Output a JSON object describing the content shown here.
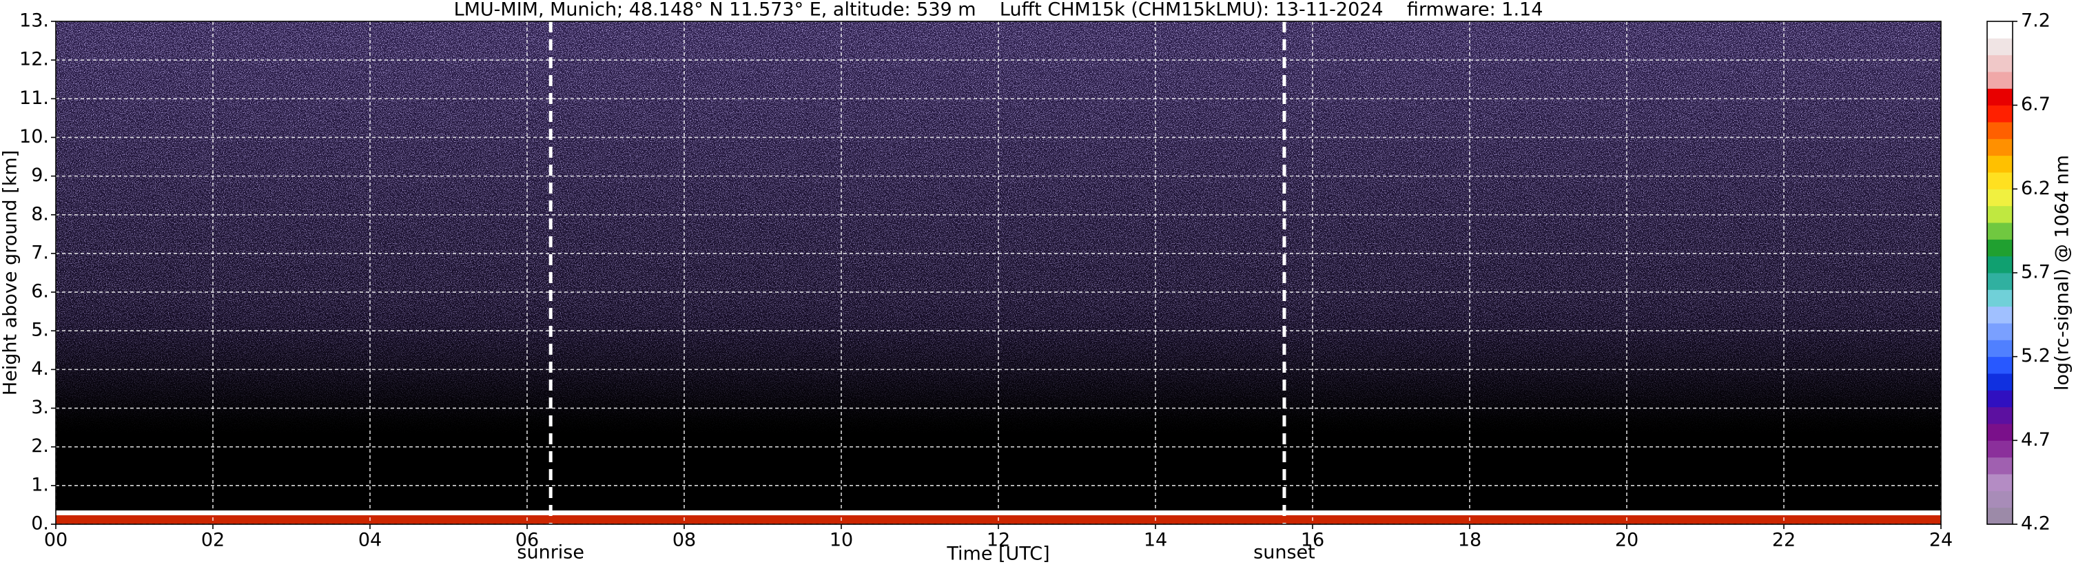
{
  "chart_data": {
    "type": "heatmap",
    "title": "LMU-MIM, Munich; 48.148° N 11.573° E, altitude: 539 m    Lufft CHM15k (CHM15kLMU): 13-11-2024    firmware: 1.14",
    "x_label": "Time [UTC]",
    "y_label": "Height above ground [km]",
    "xlim": [
      0,
      24
    ],
    "xticks": [
      {
        "value": 0,
        "label": "00"
      },
      {
        "value": 2,
        "label": "02"
      },
      {
        "value": 4,
        "label": "04"
      },
      {
        "value": 6,
        "label": "06"
      },
      {
        "value": 8,
        "label": "08"
      },
      10,
      12,
      14,
      16,
      18,
      20,
      22,
      24
    ],
    "ylim": [
      0,
      13
    ],
    "yticks": [
      {
        "value": 0,
        "label": "0."
      },
      {
        "value": 1,
        "label": "1."
      },
      {
        "value": 2,
        "label": "2."
      },
      {
        "value": 3,
        "label": "3."
      },
      {
        "value": 4,
        "label": "4."
      },
      {
        "value": 5,
        "label": "5."
      },
      {
        "value": 6,
        "label": "6."
      },
      {
        "value": 7,
        "label": "7."
      },
      {
        "value": 8,
        "label": "8."
      },
      {
        "value": 9,
        "label": "9."
      },
      {
        "value": 10,
        "label": "10."
      },
      {
        "value": 11,
        "label": "11."
      },
      {
        "value": 12,
        "label": "12."
      },
      {
        "value": 13,
        "label": "13."
      }
    ],
    "grid": true,
    "annotations": [
      {
        "label": "sunrise",
        "x": 6.3
      },
      {
        "label": "sunset",
        "x": 15.64
      }
    ],
    "colorbar": {
      "label": "log(rc-signal) @ 1064 nm",
      "lim": [
        4.2,
        7.2
      ],
      "ticks": [
        4.2,
        4.7,
        5.2,
        5.7,
        6.2,
        6.7,
        7.2
      ],
      "colors": [
        "#9c8aa8",
        "#a88cb8",
        "#b48cc4",
        "#a060b0",
        "#8b2f9b",
        "#7a108a",
        "#5c10a0",
        "#3010c0",
        "#1030e0",
        "#2858ff",
        "#5080ff",
        "#7aa0ff",
        "#a0c0ff",
        "#70d0d8",
        "#30b0a0",
        "#10a070",
        "#20a030",
        "#70c840",
        "#c0e840",
        "#f0f040",
        "#ffe020",
        "#ffc000",
        "#ff9000",
        "#ff6000",
        "#ff2000",
        "#e80000",
        "#f0a8a8",
        "#f0c8c8",
        "#f0e4e4",
        "#ffffff"
      ]
    }
  }
}
